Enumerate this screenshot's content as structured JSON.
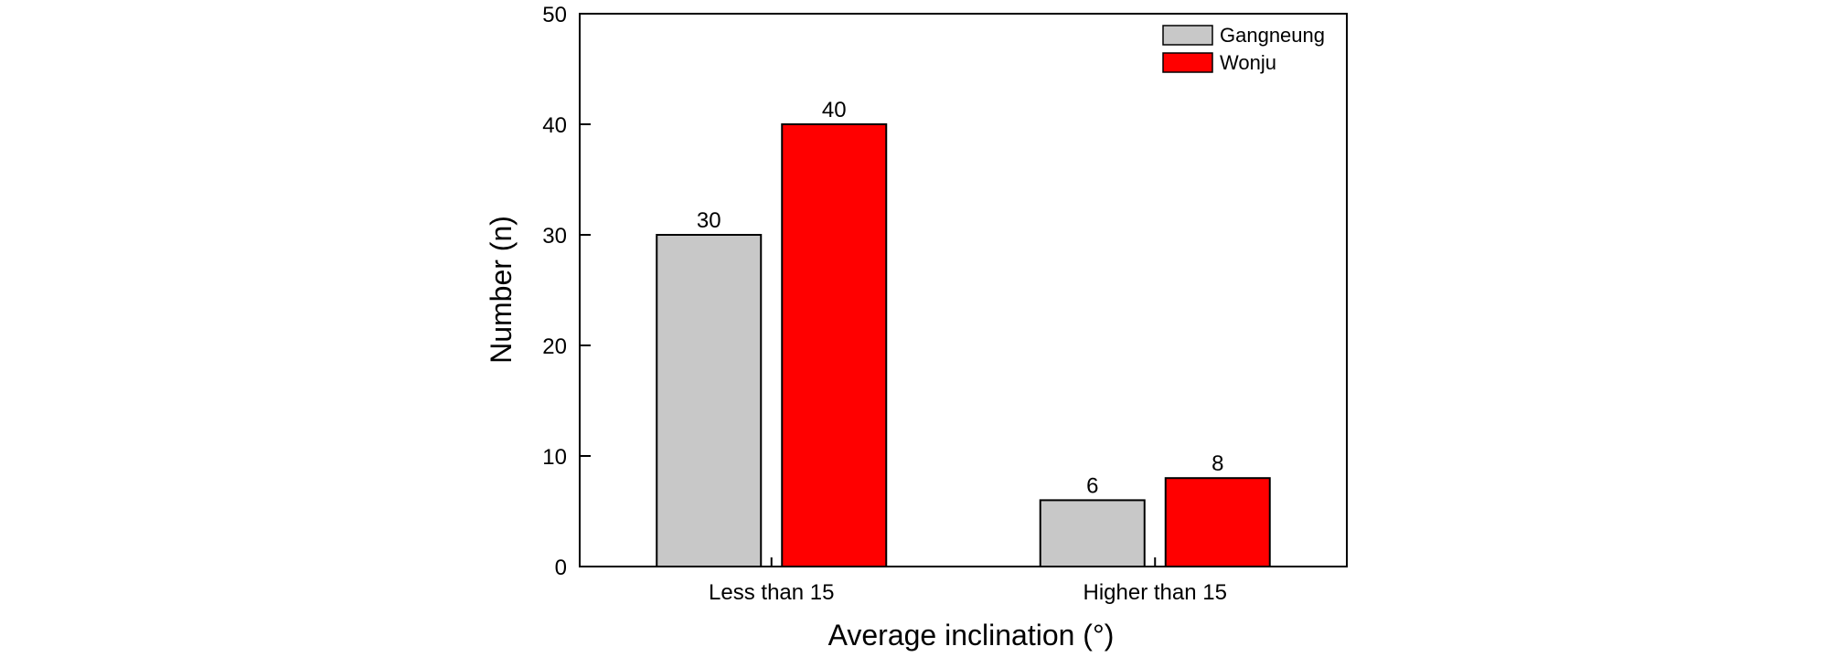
{
  "chart_data": {
    "type": "bar",
    "categories": [
      "Less than 15",
      "Higher than 15"
    ],
    "series": [
      {
        "name": "Gangneung",
        "values": [
          30,
          6
        ],
        "color": "#c8c8c8"
      },
      {
        "name": "Wonju",
        "values": [
          40,
          8
        ],
        "color": "#ff0000"
      }
    ],
    "data_labels": [
      [
        "30",
        "6"
      ],
      [
        "40",
        "8"
      ]
    ],
    "xlabel": "Average inclination (°)",
    "ylabel": "Number (n)",
    "ylim": [
      0,
      50
    ],
    "yticks": [
      0,
      10,
      20,
      30,
      40,
      50
    ],
    "grid": false,
    "legend_position": "top-right"
  }
}
